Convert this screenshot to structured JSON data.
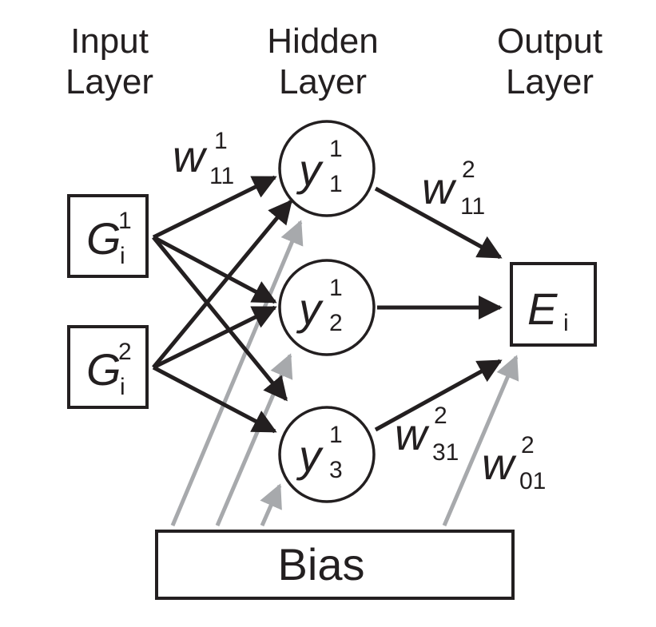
{
  "headings": {
    "input": [
      "Input",
      "Layer"
    ],
    "hidden": [
      "Hidden",
      "Layer"
    ],
    "output": [
      "Output",
      "Layer"
    ]
  },
  "inputs": [
    {
      "symbol": "G",
      "sup": "1",
      "sub": "i"
    },
    {
      "symbol": "G",
      "sup": "2",
      "sub": "i"
    }
  ],
  "hidden_nodes": [
    {
      "symbol": "y",
      "sup": "1",
      "sub": "1"
    },
    {
      "symbol": "y",
      "sup": "1",
      "sub": "2"
    },
    {
      "symbol": "y",
      "sup": "1",
      "sub": "3"
    }
  ],
  "output": {
    "symbol": "E",
    "sub": "i"
  },
  "bias": {
    "label": "Bias"
  },
  "weights": {
    "w1_11": {
      "symbol": "w",
      "sup": "1",
      "sub": "11"
    },
    "w2_11": {
      "symbol": "w",
      "sup": "2",
      "sub": "11"
    },
    "w2_31": {
      "symbol": "w",
      "sup": "2",
      "sub": "31"
    },
    "w2_01": {
      "symbol": "w",
      "sup": "2",
      "sub": "01"
    }
  },
  "colors": {
    "ink": "#231f20",
    "bias_arrow": "#a7a9ac"
  }
}
